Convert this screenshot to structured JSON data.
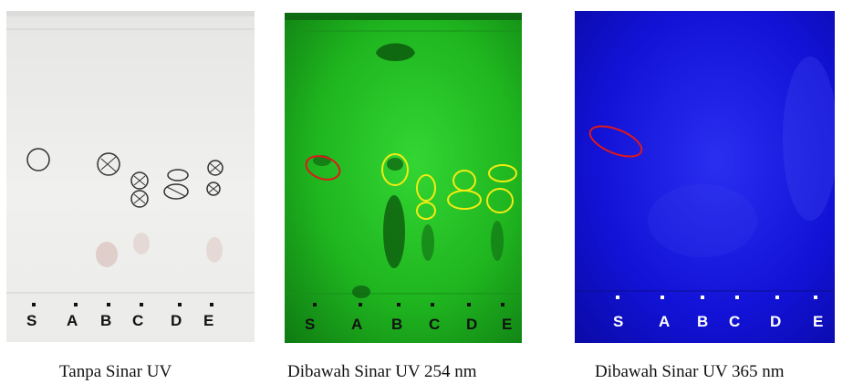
{
  "panels": [
    {
      "caption": "Tanpa Sinar UV",
      "lanes": [
        "S",
        "A",
        "B",
        "C",
        "D",
        "E"
      ]
    },
    {
      "caption": "Dibawah Sinar UV 254 nm",
      "lanes": [
        "S",
        "A",
        "B",
        "C",
        "D",
        "E"
      ]
    },
    {
      "caption": "Dibawah Sinar UV 365 nm",
      "lanes": [
        "S",
        "A",
        "B",
        "C",
        "D",
        "E"
      ]
    }
  ],
  "colors": {
    "circle_red": "#e01818",
    "circle_yellow": "#f2ec12",
    "label_dark": "#111111",
    "label_white": "#ffffff"
  }
}
